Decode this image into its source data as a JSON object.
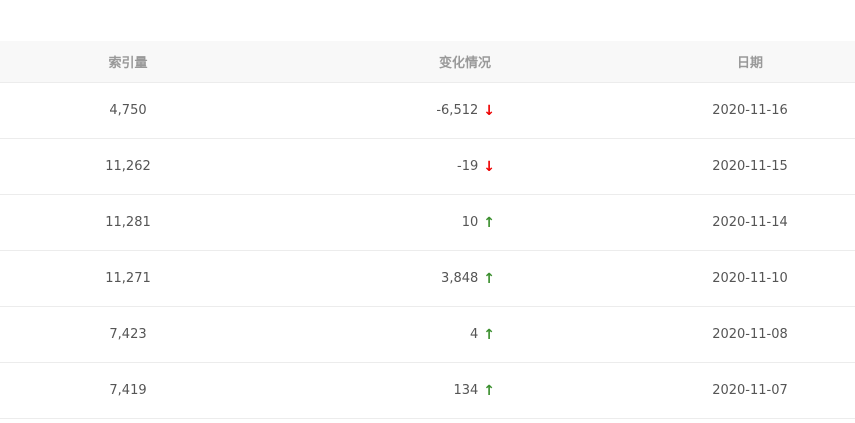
{
  "columns": {
    "index": "索引量",
    "change": "变化情况",
    "date": "日期"
  },
  "rows": [
    {
      "index": "4,750",
      "change": "-6,512",
      "trend": "down",
      "date": "2020-11-16"
    },
    {
      "index": "11,262",
      "change": "-19",
      "trend": "down",
      "date": "2020-11-15"
    },
    {
      "index": "11,281",
      "change": "10",
      "trend": "up",
      "date": "2020-11-14"
    },
    {
      "index": "11,271",
      "change": "3,848",
      "trend": "up",
      "date": "2020-11-10"
    },
    {
      "index": "7,423",
      "change": "4",
      "trend": "up",
      "date": "2020-11-08"
    },
    {
      "index": "7,419",
      "change": "134",
      "trend": "up",
      "date": "2020-11-07"
    }
  ],
  "colors": {
    "down": "#ee0000",
    "up": "#3b8f2e"
  }
}
